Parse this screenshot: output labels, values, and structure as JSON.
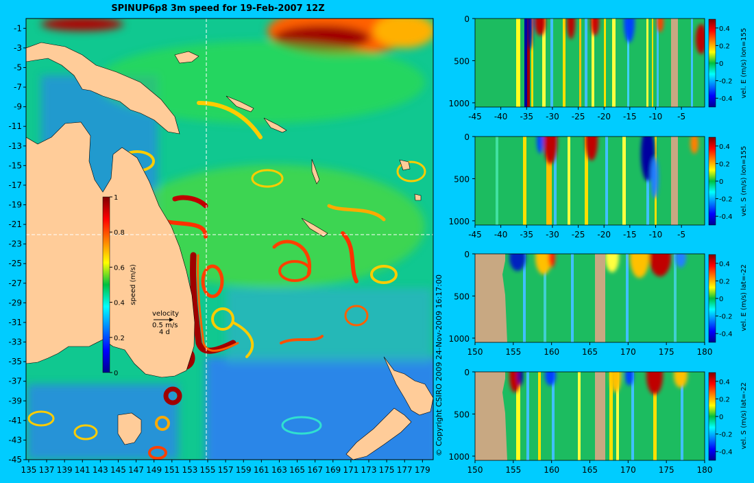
{
  "title": "SPINUP6p8 3m speed for 19-Feb-2007 12Z",
  "copyright": "© Copyright CSIRO 2009   24-Nov-2009 16:17:00",
  "colors": {
    "background": "#00ccff",
    "land": "#ffcc99",
    "section_land": "#c8a882",
    "crosshair": "#ffffff"
  },
  "chart_data": [
    {
      "type": "heatmap",
      "name": "map",
      "title": "SPINUP6p8 3m speed for 19-Feb-2007 12Z",
      "x_ticks": [
        "135",
        "137",
        "139",
        "141",
        "143",
        "145",
        "147",
        "149",
        "151",
        "153",
        "155",
        "157",
        "159",
        "161",
        "163",
        "165",
        "167",
        "169",
        "171",
        "173",
        "175",
        "177",
        "179"
      ],
      "y_ticks": [
        "-1",
        "-3",
        "-5",
        "-7",
        "-9",
        "-11",
        "-13",
        "-15",
        "-17",
        "-19",
        "-21",
        "-23",
        "-25",
        "-27",
        "-29",
        "-31",
        "-33",
        "-35",
        "-37",
        "-39",
        "-41",
        "-43",
        "-45"
      ],
      "xlim": [
        134.7,
        180.2
      ],
      "ylim": [
        -45,
        0
      ],
      "crosshair": {
        "lon": 155,
        "lat": -22
      },
      "colorbar": {
        "label": "speed (m/s)",
        "ticks": [
          "1",
          "0.8",
          "0.6",
          "0.4",
          "0.2",
          "0"
        ],
        "range": [
          0,
          1
        ],
        "colormap": "jet"
      },
      "velocity_key": {
        "label": "velocity",
        "speed": "0.5 m/s",
        "duration": "4 d"
      }
    },
    {
      "type": "heatmap",
      "name": "section-1",
      "x_ticks": [
        "-45",
        "-40",
        "-35",
        "-30",
        "-25",
        "-20",
        "-15",
        "-10",
        "-5"
      ],
      "y_ticks": [
        "0",
        "500",
        "1000"
      ],
      "xlim": [
        -45,
        -0.5
      ],
      "ylim": [
        1050,
        0
      ],
      "colorbar": {
        "label": "vel. E (m/s) lon=155",
        "ticks": [
          "0.4",
          "0.2",
          "0",
          "-0.2",
          "-0.4"
        ],
        "range": [
          -0.5,
          0.5
        ]
      }
    },
    {
      "type": "heatmap",
      "name": "section-2",
      "x_ticks": [
        "-45",
        "-40",
        "-35",
        "-30",
        "-25",
        "-20",
        "-15",
        "-10",
        "-5"
      ],
      "y_ticks": [
        "0",
        "500",
        "1000"
      ],
      "xlim": [
        -45,
        -0.5
      ],
      "ylim": [
        1050,
        0
      ],
      "colorbar": {
        "label": "vel. S (m/s) lon=155",
        "ticks": [
          "0.4",
          "0.2",
          "0",
          "-0.2",
          "-0.4"
        ],
        "range": [
          -0.5,
          0.5
        ]
      }
    },
    {
      "type": "heatmap",
      "name": "section-3",
      "x_ticks": [
        "150",
        "155",
        "160",
        "165",
        "170",
        "175",
        "180"
      ],
      "y_ticks": [
        "0",
        "500",
        "1000"
      ],
      "xlim": [
        150,
        180
      ],
      "ylim": [
        1050,
        0
      ],
      "colorbar": {
        "label": "vel. E (m/s) lat=-22",
        "ticks": [
          "0.4",
          "0.2",
          "0",
          "-0.2",
          "-0.4"
        ],
        "range": [
          -0.5,
          0.5
        ]
      }
    },
    {
      "type": "heatmap",
      "name": "section-4",
      "x_ticks": [
        "150",
        "155",
        "160",
        "165",
        "170",
        "175",
        "180"
      ],
      "y_ticks": [
        "0",
        "500",
        "1000"
      ],
      "xlim": [
        150,
        180
      ],
      "ylim": [
        1050,
        0
      ],
      "colorbar": {
        "label": "vel. S (m/s) lat=-22",
        "ticks": [
          "0.4",
          "0.2",
          "0",
          "-0.2",
          "-0.4"
        ],
        "range": [
          -0.5,
          0.5
        ]
      }
    }
  ]
}
